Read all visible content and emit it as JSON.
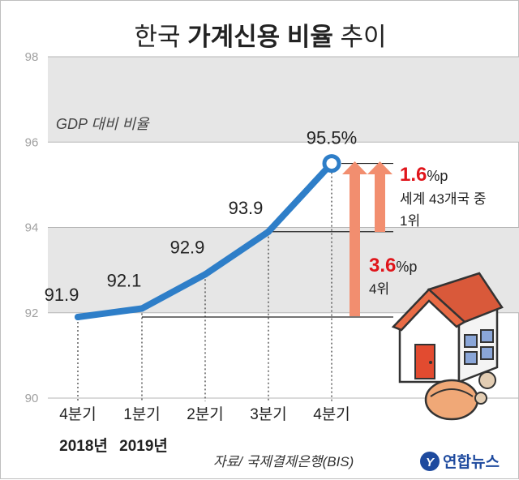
{
  "header": {
    "title_regular_left": "한국 ",
    "title_bold": "가계신용 비율",
    "title_regular_right": " 추이"
  },
  "unit_label": "GDP 대비 비율",
  "chart_data": {
    "type": "line",
    "title": "한국 가계신용 비율 추이",
    "ylabel": "GDP 대비 비율",
    "xlabel": "",
    "ylim": [
      90,
      98
    ],
    "yticks": [
      "98",
      "96",
      "94",
      "92",
      "90"
    ],
    "categories": [
      "4분기",
      "1분기",
      "2분기",
      "3분기",
      "4분기"
    ],
    "years": [
      "2018년",
      "2019년"
    ],
    "values": [
      91.9,
      92.1,
      92.9,
      93.9,
      95.5
    ],
    "data_labels": [
      "91.9",
      "92.1",
      "92.9",
      "93.9",
      "95.5%"
    ],
    "series_color": "#2e7ec8",
    "band_color": "#e6e6e6",
    "arrow_color": "#f28e6f"
  },
  "annotations": {
    "yoy_change": "1.6",
    "yoy_unit": "%p",
    "rank_world": "세계 43개국 중",
    "rank_1": "1위",
    "change_2": "3.6",
    "change_2_unit": "%p",
    "rank_2": "4위"
  },
  "source": "자료/ 국제결제은행(BIS)",
  "brand": "연합뉴스",
  "brand_logo_letter": "Y"
}
